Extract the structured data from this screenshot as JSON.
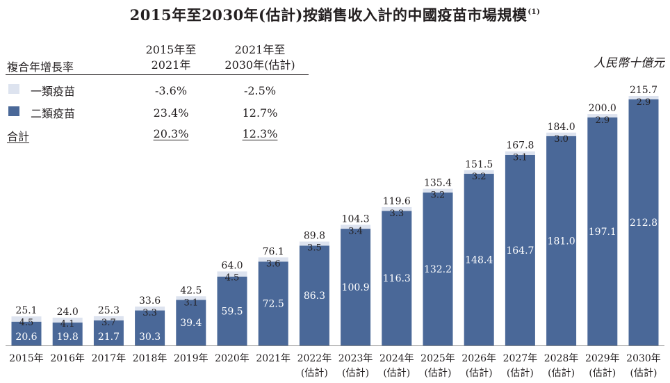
{
  "title": "2015年至2030年(估計)按銷售收入計的中國疫苗市場規模",
  "title_note": "(1)",
  "unit_label": "人民幣十億元",
  "cagr_table": {
    "header_label": "複合年增長率",
    "col1_line1": "2015年至",
    "col1_line2": "2021年",
    "col2_line1": "2021年至",
    "col2_line2": "2030年(估計)",
    "rows": [
      {
        "label": "一類疫苗",
        "c1": "-3.6%",
        "c2": "-2.5%",
        "color": "#dde3ef"
      },
      {
        "label": "二類疫苗",
        "c1": "23.4%",
        "c2": "12.7%",
        "color": "#4a6898"
      }
    ],
    "total": {
      "label": "合計",
      "c1": "20.3%",
      "c2": "12.3%"
    }
  },
  "chart_data": {
    "type": "bar",
    "stacked": true,
    "categories": [
      "2015年",
      "2016年",
      "2017年",
      "2018年",
      "2019年",
      "2020年",
      "2021年",
      "2022年",
      "2023年",
      "2024年",
      "2025年",
      "2026年",
      "2027年",
      "2028年",
      "2029年",
      "2030年"
    ],
    "category_notes": [
      "",
      "",
      "",
      "",
      "",
      "",
      "",
      "(估計)",
      "(估計)",
      "(估計)",
      "(估計)",
      "(估計)",
      "(估計)",
      "(估計)",
      "(估計)",
      "(估計)"
    ],
    "series": [
      {
        "name": "二類疫苗",
        "color": "#4a6898",
        "values": [
          20.6,
          19.8,
          21.7,
          30.3,
          39.4,
          59.5,
          72.5,
          86.3,
          100.9,
          116.3,
          132.2,
          148.4,
          164.7,
          181.0,
          197.1,
          212.8
        ]
      },
      {
        "name": "一類疫苗",
        "color": "#dde3ef",
        "values": [
          4.5,
          4.1,
          3.7,
          3.3,
          3.1,
          4.5,
          3.6,
          3.5,
          3.4,
          3.3,
          3.2,
          3.2,
          3.1,
          3.0,
          2.9,
          2.9
        ]
      }
    ],
    "totals": [
      25.1,
      24.0,
      25.3,
      33.6,
      42.5,
      64.0,
      76.1,
      89.8,
      104.3,
      119.6,
      135.4,
      151.5,
      167.8,
      184.0,
      200.0,
      215.7
    ],
    "ylim": [
      0,
      215.7
    ],
    "grid": false,
    "legend": "top-left"
  }
}
